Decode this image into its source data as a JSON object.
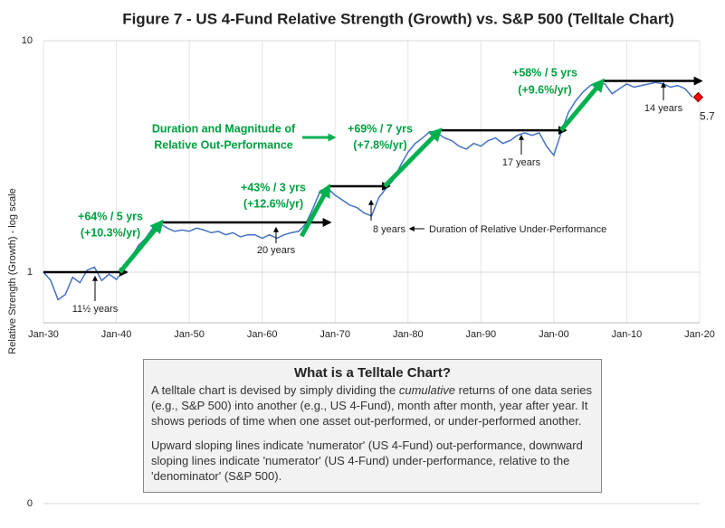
{
  "chart_data": {
    "type": "line",
    "title": "Figure 7 - US 4-Fund Relative Strength (Growth) vs. S&P 500 (Telltale Chart)",
    "y_label": "Relative Strength (Growth) - log scale",
    "log_y": true,
    "grid": true,
    "xlim": [
      1930,
      2020
    ],
    "xticks": [
      {
        "value": 1930,
        "label": "Jan-30"
      },
      {
        "value": 1940,
        "label": "Jan-40"
      },
      {
        "value": 1950,
        "label": "Jan-50"
      },
      {
        "value": 1960,
        "label": "Jan-60"
      },
      {
        "value": 1970,
        "label": "Jan-70"
      },
      {
        "value": 1980,
        "label": "Jan-80"
      },
      {
        "value": 1990,
        "label": "Jan-90"
      },
      {
        "value": 2000,
        "label": "Jan-00"
      },
      {
        "value": 2010,
        "label": "Jan-10"
      },
      {
        "value": 2020,
        "label": "Jan-20"
      }
    ],
    "ylim": [
      0.1,
      10
    ],
    "yticks": [
      {
        "value": 0.1,
        "label": "0"
      },
      1,
      10
    ],
    "x": [
      1930,
      1931,
      1932,
      1933,
      1934,
      1935,
      1936,
      1937,
      1938,
      1939,
      1940,
      1941,
      1942,
      1943,
      1944,
      1945,
      1946,
      1947,
      1948,
      1949,
      1950,
      1951,
      1952,
      1953,
      1954,
      1955,
      1956,
      1957,
      1958,
      1959,
      1960,
      1961,
      1962,
      1963,
      1964,
      1965,
      1966,
      1967,
      1968,
      1969,
      1970,
      1971,
      1972,
      1973,
      1974,
      1975,
      1976,
      1977,
      1978,
      1979,
      1980,
      1981,
      1982,
      1983,
      1984,
      1985,
      1986,
      1987,
      1988,
      1989,
      1990,
      1991,
      1992,
      1993,
      1994,
      1995,
      1996,
      1997,
      1998,
      1999,
      2000,
      2001,
      2002,
      2003,
      2004,
      2005,
      2006,
      2007,
      2008,
      2009,
      2010,
      2011,
      2012,
      2013,
      2014,
      2015,
      2016,
      2017,
      2018,
      2019
    ],
    "series": [
      {
        "color": "#4472c4",
        "values": [
          1.0,
          0.92,
          0.76,
          0.8,
          0.95,
          0.9,
          1.02,
          1.05,
          0.92,
          0.98,
          0.93,
          1.02,
          1.15,
          1.3,
          1.4,
          1.55,
          1.62,
          1.55,
          1.5,
          1.52,
          1.5,
          1.55,
          1.52,
          1.48,
          1.5,
          1.45,
          1.48,
          1.42,
          1.45,
          1.45,
          1.4,
          1.45,
          1.4,
          1.45,
          1.48,
          1.5,
          1.62,
          1.9,
          2.25,
          2.3,
          2.15,
          2.05,
          1.95,
          1.9,
          1.8,
          1.75,
          2.1,
          2.3,
          2.5,
          2.9,
          3.3,
          3.6,
          3.8,
          4.05,
          4.0,
          3.8,
          3.7,
          3.5,
          3.4,
          3.6,
          3.5,
          3.7,
          3.8,
          3.6,
          3.7,
          3.9,
          4.0,
          3.9,
          4.0,
          3.5,
          3.2,
          4.0,
          4.9,
          5.5,
          6.0,
          6.4,
          6.6,
          6.5,
          5.9,
          6.2,
          6.5,
          6.3,
          6.4,
          6.5,
          6.6,
          6.5,
          6.3,
          6.4,
          6.2,
          5.7
        ]
      }
    ],
    "flat_arrows": [
      {
        "x": [
          1930,
          1941.4
        ],
        "y": 1.0
      },
      {
        "x": [
          1946.4,
          1969.3
        ],
        "y": 1.64
      },
      {
        "x": [
          1969,
          1977.4
        ],
        "y": 2.35
      },
      {
        "x": [
          1984.2,
          2001.6
        ],
        "y": 4.1
      },
      {
        "x": [
          2006.5,
          2020.2
        ],
        "y": 6.7
      }
    ],
    "rise_arrows": [
      {
        "x": [
          1940.5,
          1946
        ],
        "y": [
          1.0,
          1.62
        ]
      },
      {
        "x": [
          1965.4,
          1969
        ],
        "y": [
          1.43,
          2.3
        ]
      },
      {
        "x": [
          1976.8,
          1984.2
        ],
        "y": [
          2.35,
          4.05
        ]
      },
      {
        "x": [
          2001,
          2006.5
        ],
        "y": [
          4.1,
          6.6
        ]
      }
    ],
    "end_point": {
      "x": 2019.8,
      "value": 5.7,
      "color": "#ff0000"
    },
    "annotations": [
      "+64% / 5 yrs",
      "(+10.3%/yr)",
      "+43% / 3 yrs",
      "(+12.6%/yr)",
      "+69% / 7 yrs",
      "(+7.8%/yr)",
      "+58% / 5 yrs",
      "(+9.6%/yr)",
      "Duration and Magnitude of",
      "Relative Out-Performance",
      "11½ years",
      "20 years",
      "8 years",
      "Duration of Relative Under-Performance",
      "17 years",
      "14 years"
    ]
  },
  "info_box": {
    "title": "What is a Telltale Chart?",
    "paragraph1": [
      "A telltale chart is devised by simply dividing the ",
      "cumulative",
      " returns of one data series (e.g., S&P 500) into another (e.g., US 4-Fund), month after month, year after year.  It shows periods of time when one asset out-performed, or under-performed another."
    ],
    "paragraph2": "Upward sloping lines indicate 'numerator' (US 4-Fund) out-performance, downward sloping lines indicate 'numerator' (US 4-Fund) under-performance, relative to the 'denominator' (S&P 500)."
  }
}
